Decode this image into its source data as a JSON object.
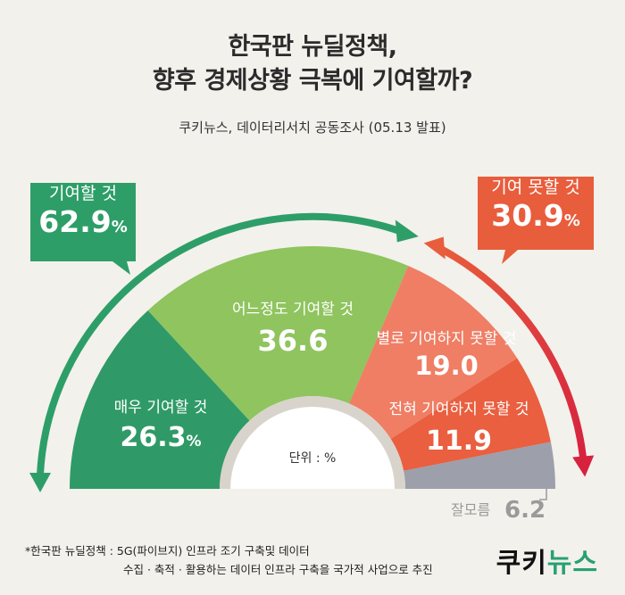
{
  "title_line1": "한국판 뉴딜정책,",
  "title_line2": "향후 경제상황 극복에 기여할까?",
  "subtitle": "쿠키뉴스, 데이터리서치 공동조사 (05.13 발표)",
  "callouts": {
    "contribute": {
      "label": "기여할 것",
      "value": "62.9",
      "unit": "%",
      "color": "#2e9e68"
    },
    "not_contribute": {
      "label": "기여 못할 것",
      "value": "30.9",
      "unit": "%",
      "color": "#e85d3c"
    }
  },
  "unit_label": "단위 : %",
  "footnote_line1": "*한국판 뉴딜정책 : 5G(파이브지) 인프라 조기 구축및 데이터",
  "footnote_line2": "수집 · 축적 · 활용하는 데이터 인프라 구축을 국가적 사업으로 추진",
  "brand": {
    "part1": "쿠키",
    "part2": "뉴스"
  },
  "chart_data": {
    "type": "pie",
    "title": "",
    "categories": [
      "매우 기여할 것",
      "어느정도 기여할 것",
      "별로 기여하지 못할 것",
      "전혀 기여하지 못할 것",
      "잘모름"
    ],
    "values": [
      26.3,
      36.6,
      19.0,
      11.9,
      6.2
    ],
    "display_values": [
      "26.3",
      "36.6",
      "19.0",
      "11.9",
      "6.2"
    ],
    "units": [
      "%",
      "",
      "",
      "",
      ""
    ],
    "colors": [
      "#2f9a67",
      "#8fc45f",
      "#ef7e64",
      "#e95f3f",
      "#9d9fab"
    ],
    "label_colors": [
      "#ffffff",
      "#ffffff",
      "#ffffff",
      "#ffffff",
      "#9a9a9a"
    ]
  }
}
